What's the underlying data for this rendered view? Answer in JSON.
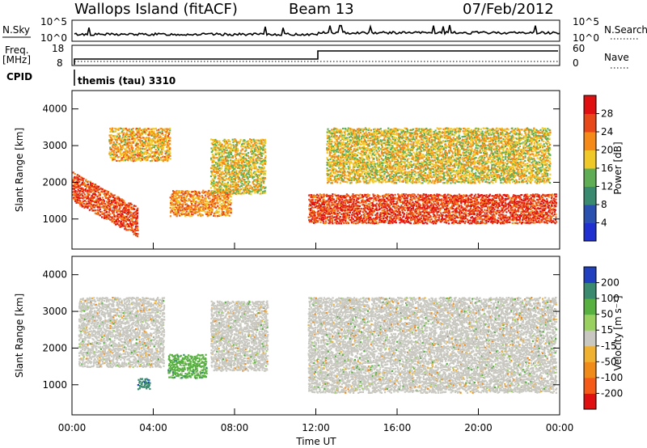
{
  "header": {
    "station": "Wallops Island (fitACF)",
    "beam": "Beam 13",
    "date": "07/Feb/2012"
  },
  "strips": {
    "nsky_label": "N.Sky",
    "nsky_ticks": [
      "10^5",
      "10^0"
    ],
    "nsearch_label": "N.Search",
    "nsearch_ticks": [
      "10^5",
      "10^0"
    ],
    "freq_label_1": "Freq.",
    "freq_label_2": "[MHz]",
    "freq_ticks": [
      "18",
      "8"
    ],
    "nave_label": "Nave",
    "nave_ticks": [
      "60",
      "0"
    ],
    "cpid_label": "CPID",
    "cpid_value": "themis (tau) 3310"
  },
  "colors": {
    "power_scale": [
      "#2030d0",
      "#2a50b0",
      "#3a8a70",
      "#5fae55",
      "#f0c828",
      "#f58a18",
      "#e84818",
      "#e01010"
    ],
    "velocity_scale": [
      "#e01010",
      "#f55a18",
      "#f08a18",
      "#f0b030",
      "#c8c8c0",
      "#9ad060",
      "#58b040",
      "#3a8a70",
      "#2040c0"
    ]
  },
  "chart_data": [
    {
      "type": "heatmap",
      "title": "",
      "xlabel": "Time UT",
      "ylabel": "Slant Range [km]",
      "x_ticks": [
        "00:00",
        "04:00",
        "08:00",
        "12:00",
        "16:00",
        "20:00",
        "00:00"
      ],
      "x_range_hours": [
        0,
        24
      ],
      "y_ticks": [
        "1000",
        "2000",
        "3000",
        "4000"
      ],
      "ylim": [
        180,
        4500
      ],
      "colorbar_label": "Power [dB]",
      "colorbar_ticks": [
        "28",
        "24",
        "20",
        "16",
        "12",
        "8",
        "4"
      ],
      "colorbar_range": [
        0,
        32
      ],
      "regions": [
        {
          "name": "early-arc",
          "t0": 0.0,
          "t1": 3.2,
          "r0": 1500,
          "r1": 2300,
          "level": 26,
          "slope": -300
        },
        {
          "name": "early-upper",
          "t0": 1.8,
          "t1": 4.8,
          "r0": 2600,
          "r1": 3500,
          "level": 20
        },
        {
          "name": "mid-band",
          "t0": 4.8,
          "t1": 7.8,
          "r0": 1100,
          "r1": 1800,
          "level": 22
        },
        {
          "name": "mid-upper",
          "t0": 6.8,
          "t1": 9.5,
          "r0": 1700,
          "r1": 3200,
          "level": 18
        },
        {
          "name": "late-main",
          "t0": 11.6,
          "t1": 23.8,
          "r0": 900,
          "r1": 1700,
          "level": 27
        },
        {
          "name": "late-upper",
          "t0": 12.5,
          "t1": 23.5,
          "r0": 2000,
          "r1": 3500,
          "level": 18
        }
      ]
    },
    {
      "type": "heatmap",
      "title": "",
      "xlabel": "Time UT",
      "ylabel": "Slant Range [km]",
      "x_ticks": [
        "00:00",
        "04:00",
        "08:00",
        "12:00",
        "16:00",
        "20:00",
        "00:00"
      ],
      "x_range_hours": [
        0,
        24
      ],
      "y_ticks": [
        "1000",
        "2000",
        "3000",
        "4000"
      ],
      "ylim": [
        180,
        4500
      ],
      "colorbar_label": "Velocity [m s⁻¹]",
      "colorbar_ticks": [
        "200",
        "100",
        "50",
        "15",
        "-15",
        "-50",
        "-100",
        "-200"
      ],
      "colorbar_range": [
        -250,
        250
      ],
      "regions": [
        {
          "name": "early-gray",
          "t0": 0.3,
          "t1": 4.5,
          "r0": 1500,
          "r1": 3400,
          "level": 0
        },
        {
          "name": "mid-green",
          "t0": 4.7,
          "t1": 6.6,
          "r0": 1200,
          "r1": 1850,
          "level": 60
        },
        {
          "name": "mid-blue",
          "t0": 3.2,
          "t1": 3.8,
          "r0": 900,
          "r1": 1200,
          "level": 180
        },
        {
          "name": "mid-upper-gray",
          "t0": 6.8,
          "t1": 9.6,
          "r0": 1400,
          "r1": 3300,
          "level": 0
        },
        {
          "name": "late-gray",
          "t0": 11.6,
          "t1": 23.8,
          "r0": 800,
          "r1": 3400,
          "level": 0
        }
      ]
    }
  ]
}
